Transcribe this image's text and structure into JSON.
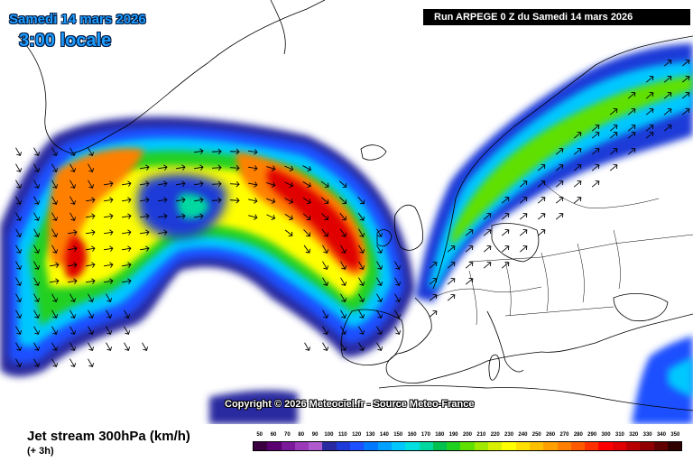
{
  "header": {
    "date_text": "Samedi 14 mars 2026",
    "time_text": "3:00 locale",
    "run_text": "Run ARPEGE 0 Z du Samedi 14 mars 2026"
  },
  "map": {
    "copyright_text": "Copyright © 2026 Meteociel.fr - Source Meteo-France",
    "land_color": "#ffffff",
    "border_color": "#000000",
    "arrow_color": "#000000"
  },
  "footer": {
    "product_text": "Jet stream 300hPa (km/h)",
    "offset_text": "(+ 3h)"
  },
  "legend": {
    "labels": [
      "50",
      "60",
      "70",
      "80",
      "90",
      "100",
      "110",
      "120",
      "130",
      "140",
      "150",
      "160",
      "170",
      "180",
      "190",
      "200",
      "210",
      "220",
      "230",
      "240",
      "250",
      "260",
      "270",
      "280",
      "290",
      "300",
      "310",
      "320",
      "330",
      "340",
      "350"
    ],
    "colors": [
      "#3a0040",
      "#5a0070",
      "#7a1a9a",
      "#9a3ab8",
      "#b05ad0",
      "#2a2aa0",
      "#1e3ad8",
      "#1e50ff",
      "#0078ff",
      "#00a0ff",
      "#00c8ff",
      "#00e0e0",
      "#00d8a0",
      "#00c050",
      "#20d020",
      "#60e000",
      "#a0e800",
      "#d8f000",
      "#ffff00",
      "#ffe000",
      "#ffc000",
      "#ffa000",
      "#ff8000",
      "#ff5a00",
      "#ff3000",
      "#ff0000",
      "#e00000",
      "#b80000",
      "#900000",
      "#600000",
      "#300000"
    ]
  }
}
